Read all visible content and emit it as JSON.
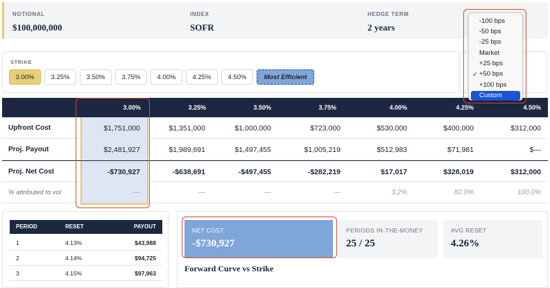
{
  "summary": {
    "notional_label": "NOTIONAL",
    "notional_value": "$100,000,000",
    "index_label": "INDEX",
    "index_value": "SOFR",
    "term_label": "HEDGE TERM",
    "term_value": "2 years"
  },
  "strike": {
    "title": "STRIKE",
    "options": [
      "3.00%",
      "3.25%",
      "3.50%",
      "3.75%",
      "4.00%",
      "4.25%",
      "4.50%"
    ],
    "selected": "3.00%",
    "efficient_label": "Most Efficient"
  },
  "dropdown": {
    "items": [
      "-100 bps",
      "-50 bps",
      "-25 bps",
      "Market",
      "+25 bps",
      "+50 bps",
      "+100 bps",
      "Custom"
    ],
    "checked": "+50 bps",
    "highlighted": "Custom",
    "check_glyph": "✓"
  },
  "table": {
    "columns": [
      "3.00%",
      "3.25%",
      "3.50%",
      "3.75%",
      "4.00%",
      "4.25%",
      "4.50%"
    ],
    "rows": [
      {
        "label": "Upfront Cost",
        "values": [
          "$1,751,000",
          "$1,351,000",
          "$1,000,000",
          "$723,000",
          "$530,000",
          "$400,000",
          "$312,000"
        ]
      },
      {
        "label": "Proj. Payout",
        "values": [
          "$2,481,927",
          "$1,989,691",
          "$1,497,455",
          "$1,005,219",
          "$512,983",
          "$71,981",
          "$—"
        ]
      },
      {
        "label": "Proj. Net Cost",
        "values": [
          "-$730,927",
          "-$638,691",
          "-$497,455",
          "-$282,219",
          "$17,017",
          "$328,019",
          "$312,000"
        ]
      },
      {
        "label": "% attributed to vol",
        "values": [
          "—",
          "—",
          "—",
          "—",
          "3.2%",
          "82.0%",
          "100.0%"
        ]
      }
    ]
  },
  "periods": {
    "headers": [
      "PERIOD",
      "RESET",
      "PAYOUT"
    ],
    "rows": [
      {
        "period": "1",
        "reset": "4.13%",
        "payout": "$43,988"
      },
      {
        "period": "2",
        "reset": "4.14%",
        "payout": "$94,725"
      },
      {
        "period": "3",
        "reset": "4.15%",
        "payout": "$97,963"
      }
    ]
  },
  "results": {
    "net_cost_label": "NET COST",
    "net_cost_value": "-$730,927",
    "itm_label": "PERIODS IN-THE-MONEY",
    "itm_value": "25 / 25",
    "avg_reset_label": "AVG RESET",
    "avg_reset_value": "4.26%",
    "chart_title": "Forward Curve vs Strike"
  },
  "colors": {
    "navy": "#1c2841",
    "gold": "#e9cf76",
    "blue": "#7ea6d9",
    "highlight_red": "#e0442a",
    "menu_selected": "#1c52d4"
  }
}
